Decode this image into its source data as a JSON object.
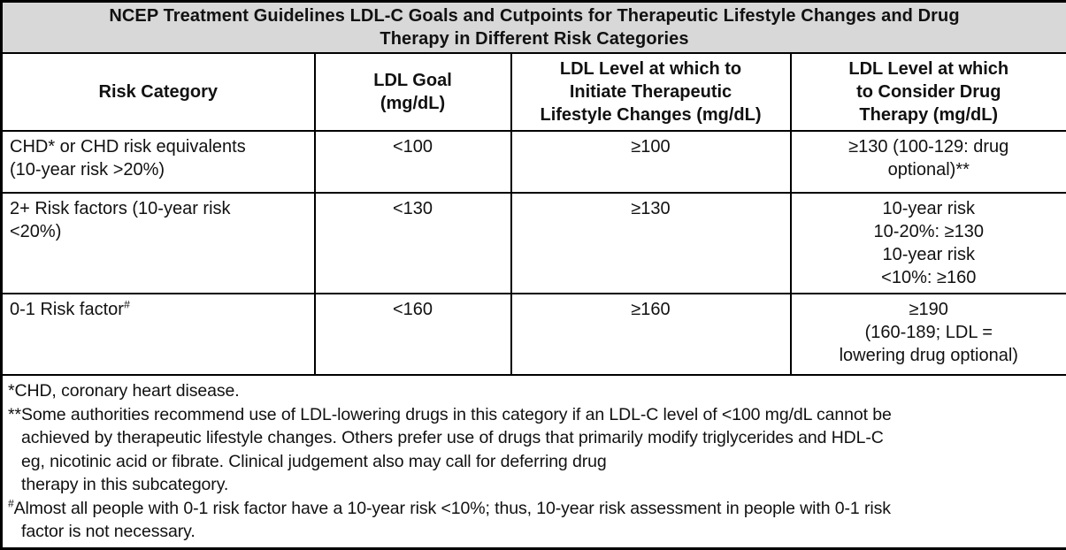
{
  "table": {
    "title_lines": [
      "NCEP Treatment Guidelines LDL-C Goals and Cutpoints for Therapeutic Lifestyle Changes and Drug",
      "Therapy in Different Risk Categories"
    ],
    "columns": [
      {
        "header_lines": [
          "Risk Category"
        ]
      },
      {
        "header_lines": [
          "LDL Goal",
          "(mg/dL)"
        ]
      },
      {
        "header_lines": [
          "LDL Level at which to",
          "Initiate Therapeutic",
          "Lifestyle Changes (mg/dL)"
        ]
      },
      {
        "header_lines": [
          "LDL Level at which",
          "to Consider Drug",
          "Therapy (mg/dL)"
        ]
      }
    ],
    "rows": [
      {
        "category_lines": [
          "CHD* or CHD risk equivalents",
          "(10-year risk >20%)"
        ],
        "ldl_goal": "<100",
        "tlc_level": "≥100",
        "drug_therapy_lines": [
          "≥130 (100-129: drug",
          "optional)**"
        ]
      },
      {
        "category_lines": [
          "2+ Risk factors (10-year risk",
          "<20%)"
        ],
        "ldl_goal": "<130",
        "tlc_level": "≥130",
        "drug_therapy_lines": [
          "10-year risk",
          "10-20%: ≥130",
          "10-year risk",
          "<10%: ≥160"
        ]
      },
      {
        "category_text": "0-1 Risk factor",
        "category_sup": "#",
        "ldl_goal": "<160",
        "tlc_level": "≥160",
        "drug_therapy_lines": [
          "≥190",
          "(160-189; LDL =",
          "lowering drug optional)"
        ]
      }
    ],
    "footnotes": {
      "chd": "*CHD, coronary heart disease.",
      "some_authorities_lines": [
        "**Some authorities recommend use of LDL-lowering drugs in this category if an LDL-C level of <100 mg/dL cannot be",
        "achieved by therapeutic lifestyle changes. Others prefer use of drugs that primarily modify triglycerides and HDL-C",
        "eg, nicotinic acid or fibrate. Clinical judgement also may call for deferring drug",
        "therapy in this subcategory."
      ],
      "hash_sup": "#",
      "almost_lines": [
        "Almost all people with 0-1 risk factor have a 10-year risk <10%; thus, 10-year risk assessment in people with 0-1 risk",
        "factor is not necessary."
      ]
    }
  }
}
